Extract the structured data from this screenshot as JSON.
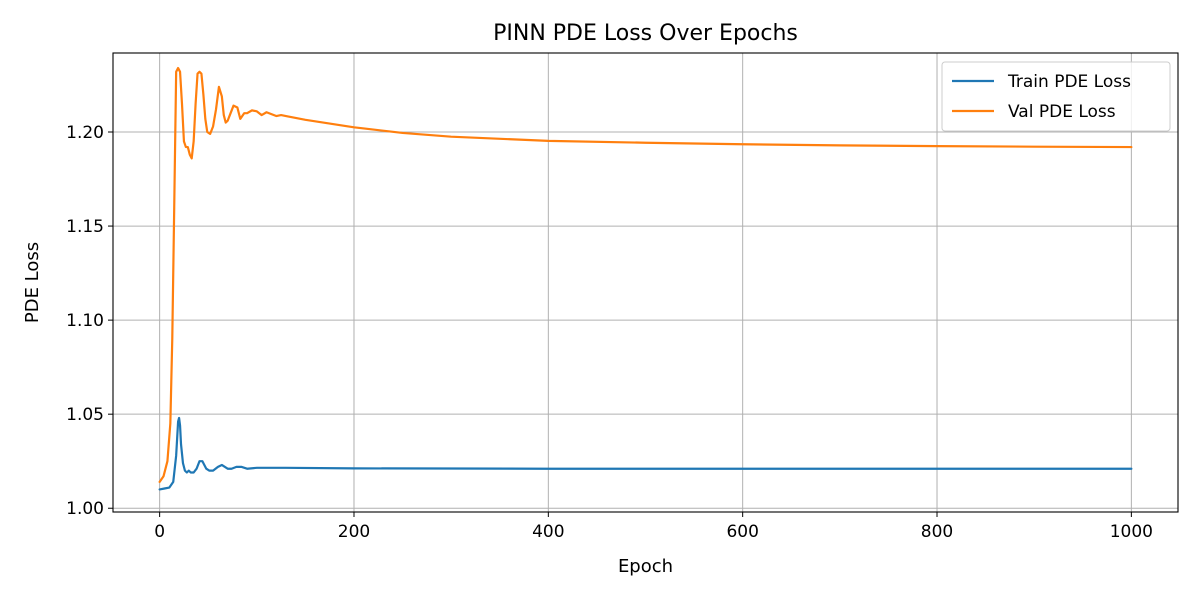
{
  "chart_data": {
    "type": "line",
    "title": "PINN PDE Loss Over Epochs",
    "xlabel": "Epoch",
    "ylabel": "PDE Loss",
    "xlim": [
      -48,
      1048
    ],
    "ylim": [
      0.998,
      1.242
    ],
    "xticks": [
      0,
      200,
      400,
      600,
      800,
      1000
    ],
    "yticks": [
      1.0,
      1.05,
      1.1,
      1.15,
      1.2
    ],
    "ytick_labels": [
      "1.00",
      "1.05",
      "1.10",
      "1.15",
      "1.20"
    ],
    "xtick_labels": [
      "0",
      "200",
      "400",
      "600",
      "800",
      "1000"
    ],
    "grid": true,
    "legend_position": "top-right",
    "series": [
      {
        "name": "Train PDE Loss",
        "color": "#1f77b4",
        "x": [
          0,
          5,
          10,
          14,
          17,
          19,
          20,
          21,
          22,
          24,
          26,
          28,
          30,
          32,
          35,
          38,
          41,
          44,
          46,
          48,
          51,
          55,
          60,
          64,
          67,
          70,
          74,
          79,
          84,
          90,
          100,
          110,
          130,
          200,
          400,
          600,
          800,
          1000
        ],
        "y": [
          1.01,
          1.0105,
          1.011,
          1.014,
          1.028,
          1.046,
          1.048,
          1.044,
          1.034,
          1.024,
          1.02,
          1.019,
          1.02,
          1.019,
          1.019,
          1.021,
          1.025,
          1.025,
          1.023,
          1.021,
          1.02,
          1.02,
          1.022,
          1.023,
          1.022,
          1.021,
          1.021,
          1.022,
          1.022,
          1.021,
          1.0215,
          1.0215,
          1.0215,
          1.0212,
          1.021,
          1.021,
          1.021,
          1.021
        ]
      },
      {
        "name": "Val PDE Loss",
        "color": "#ff7f0e",
        "x": [
          0,
          4,
          8,
          11,
          13,
          15,
          17,
          19,
          21,
          23,
          25,
          27,
          29,
          31,
          33,
          35,
          37,
          39,
          41,
          43,
          45,
          47,
          49,
          52,
          55,
          58,
          61,
          64,
          66,
          68,
          70,
          73,
          76,
          80,
          83,
          87,
          90,
          95,
          100,
          105,
          110,
          115,
          120,
          125,
          130,
          140,
          150,
          175,
          200,
          250,
          300,
          400,
          500,
          600,
          700,
          800,
          900,
          1000
        ],
        "y": [
          1.014,
          1.017,
          1.025,
          1.045,
          1.09,
          1.16,
          1.232,
          1.234,
          1.232,
          1.215,
          1.195,
          1.192,
          1.192,
          1.188,
          1.186,
          1.195,
          1.215,
          1.231,
          1.232,
          1.231,
          1.22,
          1.207,
          1.2,
          1.199,
          1.203,
          1.212,
          1.224,
          1.219,
          1.209,
          1.205,
          1.206,
          1.21,
          1.214,
          1.213,
          1.207,
          1.21,
          1.21,
          1.2115,
          1.211,
          1.209,
          1.2105,
          1.2095,
          1.2085,
          1.209,
          1.2085,
          1.2075,
          1.2065,
          1.2045,
          1.2025,
          1.1995,
          1.1975,
          1.1953,
          1.1943,
          1.1935,
          1.1929,
          1.1925,
          1.1922,
          1.192
        ]
      }
    ]
  }
}
